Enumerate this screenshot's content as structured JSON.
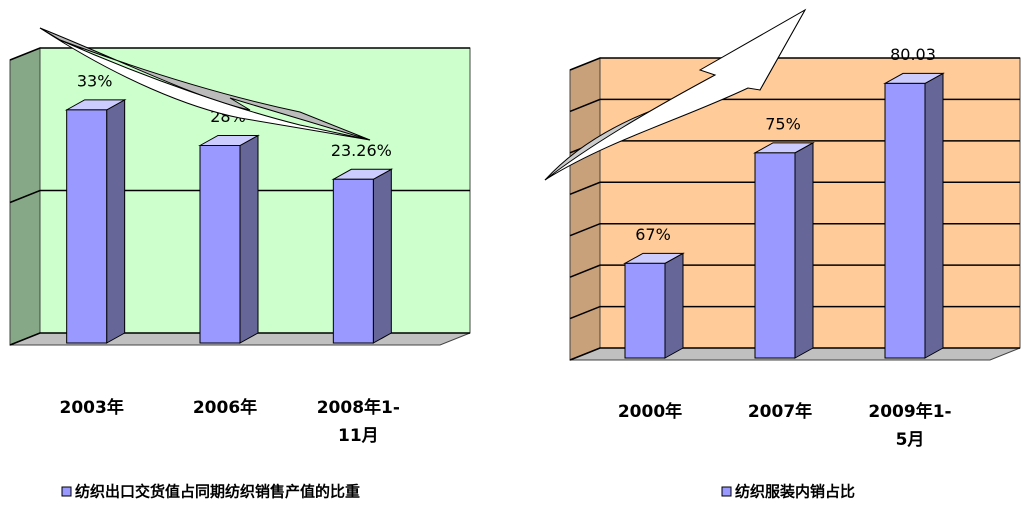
{
  "chart_data": [
    {
      "type": "bar3d",
      "categories": [
        "2003年",
        "2006年",
        "2008年1-11月"
      ],
      "series": [
        {
          "name": "纺织出口交货值占同期纺织销售产值的比重",
          "color": "#9999ff",
          "values": [
            33,
            28,
            23.26
          ],
          "value_labels": [
            "33%",
            "28%",
            "23.26%"
          ]
        }
      ],
      "ylim": [
        0,
        40
      ],
      "yticks": [
        0,
        20,
        40
      ],
      "grid": true,
      "wall_color": "#ccffcc",
      "side_wall_color": "#86a886"
    },
    {
      "type": "bar3d",
      "categories": [
        "2000年",
        "2007年",
        "2009年1-5月"
      ],
      "series": [
        {
          "name": "纺织服装内销占比",
          "color": "#9999ff",
          "values": [
            67,
            75,
            80.03
          ],
          "value_labels": [
            "67%",
            "75%",
            "80.03"
          ]
        }
      ],
      "ylim": [
        60,
        81
      ],
      "yticks": [
        60,
        63,
        66,
        69,
        72,
        75,
        78,
        81
      ],
      "grid": true,
      "wall_color": "#ffcc99",
      "side_wall_color": "#c8a07a"
    }
  ]
}
